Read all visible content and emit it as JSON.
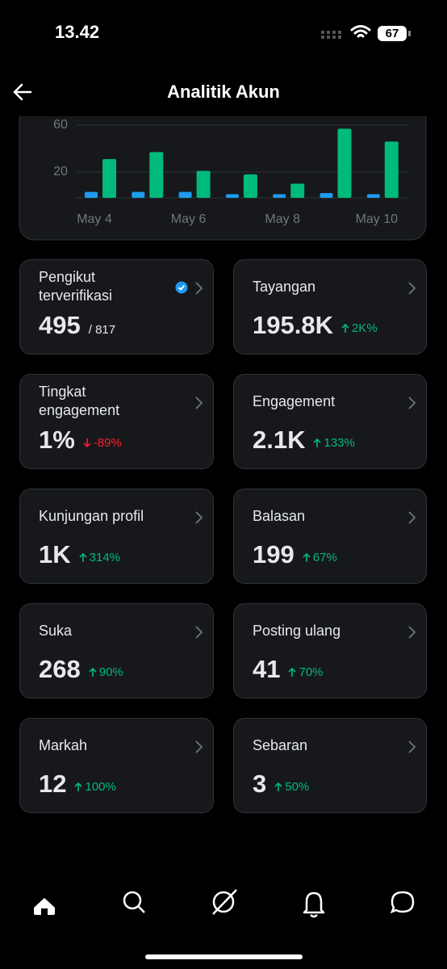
{
  "status_bar": {
    "time": "13.42",
    "battery": "67"
  },
  "header": {
    "title": "Analitik Akun"
  },
  "chart_data": {
    "type": "bar",
    "categories": [
      "May 4",
      null,
      "May 6",
      null,
      "May 8",
      null,
      "May 10"
    ],
    "series": [
      {
        "color": "#1d9bf0",
        "values": [
          3,
          3,
          3,
          1,
          1,
          2,
          1
        ]
      },
      {
        "color": "#00ba7c",
        "values": [
          31,
          37,
          21,
          18,
          10,
          57,
          46
        ]
      }
    ],
    "ylim": [
      0,
      60
    ],
    "yticks": [
      20,
      60
    ],
    "grid": true
  },
  "cards": [
    {
      "label": "Pengikut terverifikasi",
      "value": "495",
      "extra": "/ 817",
      "verified": true
    },
    {
      "label": "Tayangan",
      "value": "195.8K",
      "change": "2K%",
      "trend": "up"
    },
    {
      "label": "Tingkat engagement",
      "value": "1%",
      "change": "-89%",
      "trend": "down"
    },
    {
      "label": "Engagement",
      "value": "2.1K",
      "change": "133%",
      "trend": "up"
    },
    {
      "label": "Kunjungan profil",
      "value": "1K",
      "change": "314%",
      "trend": "up"
    },
    {
      "label": "Balasan",
      "value": "199",
      "change": "67%",
      "trend": "up"
    },
    {
      "label": "Suka",
      "value": "268",
      "change": "90%",
      "trend": "up"
    },
    {
      "label": "Posting ulang",
      "value": "41",
      "change": "70%",
      "trend": "up"
    },
    {
      "label": "Markah",
      "value": "12",
      "change": "100%",
      "trend": "up"
    },
    {
      "label": "Sebaran",
      "value": "3",
      "change": "50%",
      "trend": "up"
    }
  ]
}
